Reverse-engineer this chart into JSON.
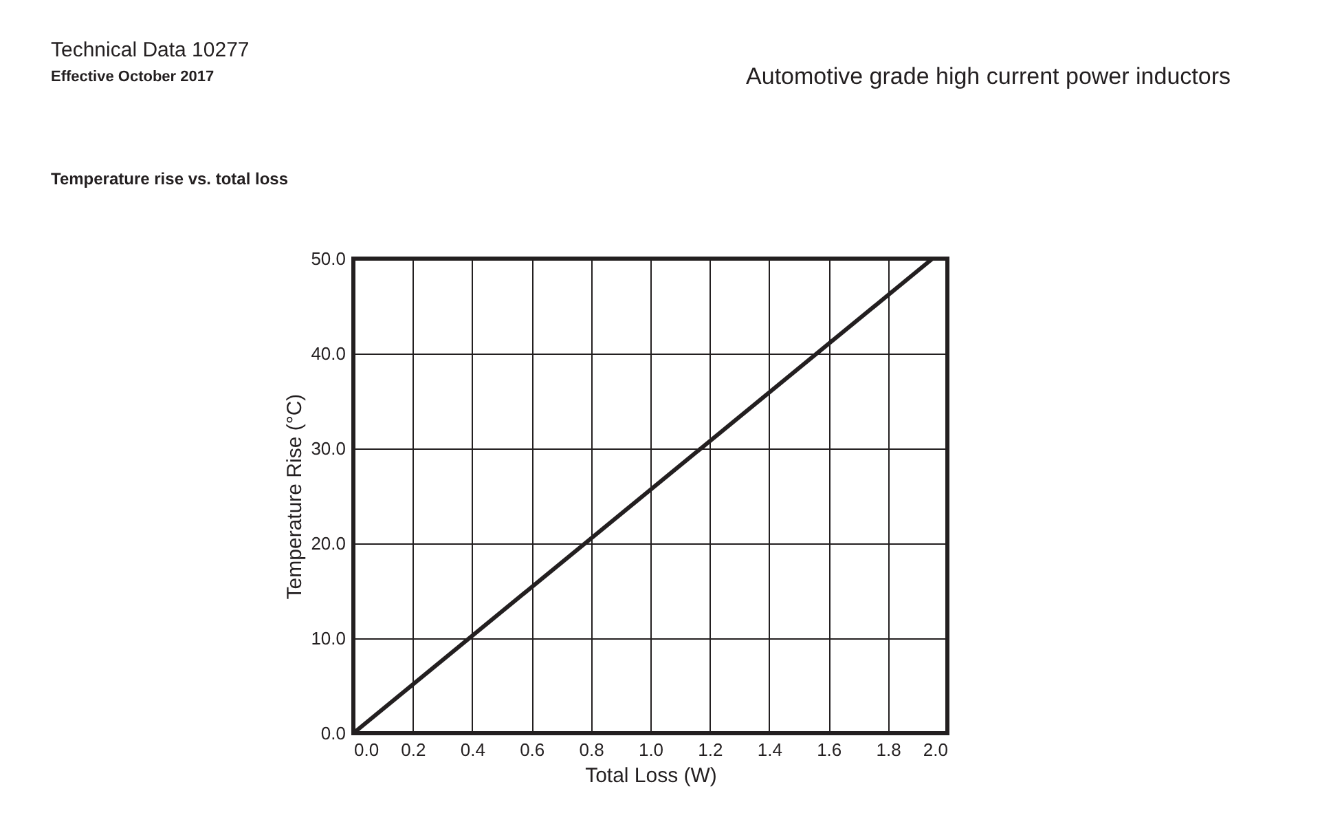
{
  "chart_data": {
    "type": "line",
    "title": "Temperature rise vs. total loss",
    "xlabel": "Total Loss (W)",
    "ylabel": "Temperature Rise (°C)",
    "annotations": [
      "Technical Data 10277",
      "Effective October 2017",
      "Automotive grade high current power inductors"
    ],
    "x": [
      0,
      1.95
    ],
    "series": [
      {
        "color": "#231f20",
        "values": [
          0,
          50
        ]
      }
    ],
    "xlim": [
      0,
      2
    ],
    "ylim": [
      0,
      50
    ],
    "xticks": [
      {
        "value": 0,
        "label": "0.0"
      },
      0.2,
      0.4,
      0.6,
      0.8,
      {
        "value": 1,
        "label": "1.0"
      },
      1.2,
      1.4,
      1.6,
      1.8,
      {
        "value": 2,
        "label": "2.0"
      }
    ],
    "yticks": [
      {
        "value": 0,
        "label": "0.0"
      },
      {
        "value": 10,
        "label": "10.0"
      },
      {
        "value": 20,
        "label": "20.0"
      },
      {
        "value": 30,
        "label": "30.0"
      },
      {
        "value": 40,
        "label": "40.0"
      },
      {
        "value": 50,
        "label": "50.0"
      }
    ],
    "grid": true,
    "legend": false,
    "marker": "none",
    "line_style": "solid"
  }
}
